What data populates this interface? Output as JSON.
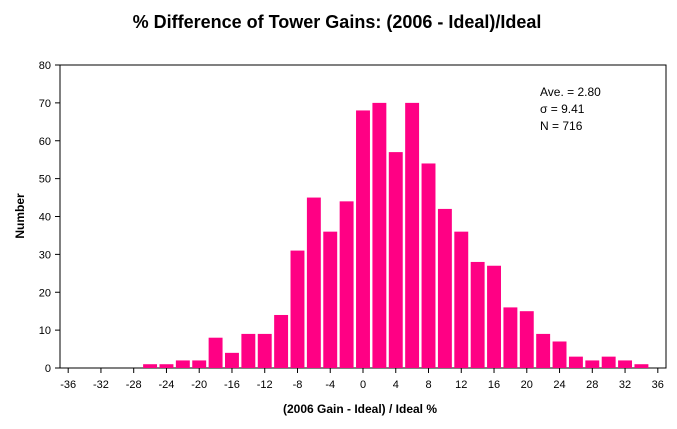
{
  "chart_data": {
    "type": "bar",
    "title": "% Difference of  Tower Gains: (2006 - Ideal)/Ideal",
    "xlabel": "(2006 Gain - Ideal) / Ideal %",
    "ylabel": "Number",
    "ylim": [
      0,
      80
    ],
    "xlim": [
      -37,
      37
    ],
    "yticks": [
      0,
      10,
      20,
      30,
      40,
      50,
      60,
      70,
      80
    ],
    "xticks": [
      -36,
      -32,
      -28,
      -24,
      -20,
      -16,
      -12,
      -8,
      -4,
      0,
      4,
      8,
      12,
      16,
      20,
      24,
      28,
      32,
      36
    ],
    "bin_width": 2,
    "grid": false,
    "bar_color": "#ff0084",
    "x": [
      -36,
      -34,
      -32,
      -30,
      -28,
      -26,
      -24,
      -22,
      -20,
      -18,
      -16,
      -14,
      -12,
      -10,
      -8,
      -6,
      -4,
      -2,
      0,
      2,
      4,
      6,
      8,
      10,
      12,
      14,
      16,
      18,
      20,
      22,
      24,
      26,
      28,
      30,
      32,
      34
    ],
    "values": [
      0,
      0,
      0,
      0,
      0,
      1,
      1,
      2,
      2,
      8,
      4,
      9,
      9,
      14,
      31,
      45,
      36,
      44,
      68,
      70,
      57,
      70,
      54,
      42,
      36,
      28,
      27,
      16,
      15,
      9,
      7,
      3,
      2,
      3,
      2,
      1
    ],
    "annotations": [
      "Ave. = 2.80",
      "σ = 9.41",
      "N =  716"
    ]
  }
}
